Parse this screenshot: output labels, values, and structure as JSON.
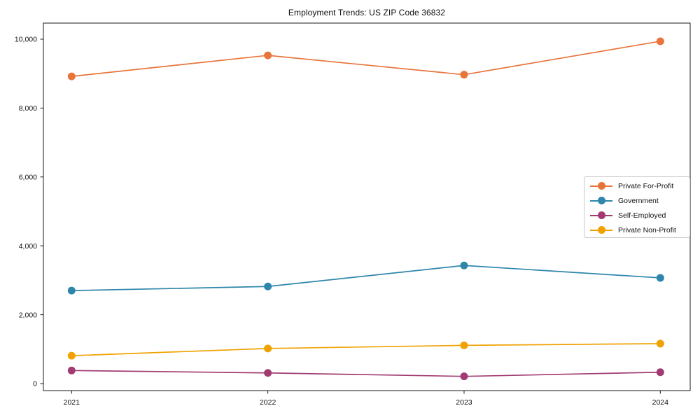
{
  "figure": {
    "background": "#ffffff",
    "frame_color": "#1a1a1a"
  },
  "chart_data": {
    "type": "line",
    "title": "Employment Trends: US ZIP Code 36832",
    "xlabel": "",
    "ylabel": "",
    "categories": [
      "2021",
      "2022",
      "2023",
      "2024"
    ],
    "series": [
      {
        "name": "Private For-Profit",
        "color": "#E8743B",
        "values": [
          8920,
          9530,
          8970,
          9940
        ]
      },
      {
        "name": "Government",
        "color": "#2E86AB",
        "values": [
          2700,
          2820,
          3430,
          3070
        ]
      },
      {
        "name": "Self-Employed",
        "color": "#A23B72",
        "values": [
          380,
          310,
          210,
          330
        ]
      },
      {
        "name": "Private Non-Profit",
        "color": "#F0A202",
        "values": [
          810,
          1020,
          1110,
          1160
        ]
      }
    ],
    "ylim": [
      0,
      10000
    ],
    "yticks": [
      0,
      2000,
      4000,
      6000,
      8000,
      10000
    ],
    "ytick_labels": [
      "0",
      "2,000",
      "4,000",
      "6,000",
      "8,000",
      "10,000"
    ],
    "grid": false,
    "legend_position": "center right",
    "marker": "circle",
    "frame": true
  }
}
